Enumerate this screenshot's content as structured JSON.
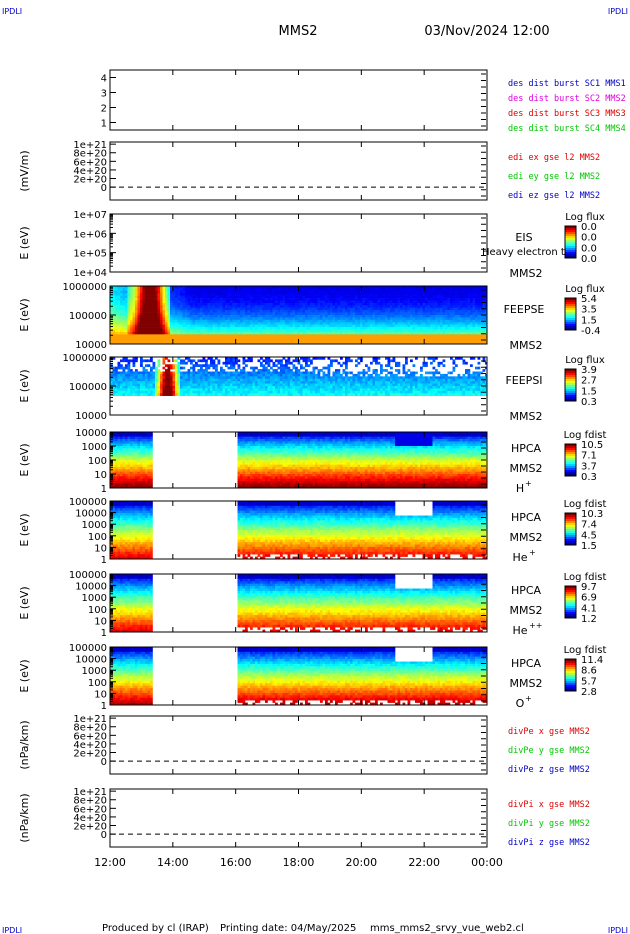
{
  "header": {
    "corner_tl": "IPDLI",
    "corner_tr": "IPDLI",
    "corner_bl": "IPDLI",
    "corner_br": "IPDLI",
    "mission": "MMS2",
    "datetime": "03/Nov/2024 12:00"
  },
  "footer": {
    "produced_by": "Produced by cl (IRAP)",
    "printing_date": "Printing date: 04/May/2025",
    "filename": "mms_mms2_srvy_vue_web2.cl"
  },
  "colors": {
    "black": "#000000",
    "blue": "#0000c8",
    "magenta": "#e000e0",
    "red": "#dd0000",
    "green": "#00c800"
  },
  "chart_data": [
    {
      "type": "line",
      "id": "p1",
      "yticks": [
        "4",
        "3",
        "2",
        "1"
      ],
      "ylim": [
        0.5,
        4.5
      ],
      "legend": [
        {
          "text": "des dist burst SC1 MMS1",
          "color": "#0000c8"
        },
        {
          "text": "des dist burst SC2 MMS2",
          "color": "#e000e0"
        },
        {
          "text": "des dist burst SC3 MMS3",
          "color": "#dd0000"
        },
        {
          "text": "des dist burst SC4 MMS4",
          "color": "#00c800"
        }
      ]
    },
    {
      "type": "line",
      "id": "p2",
      "ylabel": "(mV/m)",
      "yticks": [
        "1e+21",
        "8e+20",
        "6e+20",
        "4e+20",
        "2e+20",
        "0"
      ],
      "ylim": [
        -3e+20,
        1.05e+21
      ],
      "dashed_zero": true,
      "legend": [
        {
          "text": "edi ex gse l2 MMS2",
          "color": "#dd0000"
        },
        {
          "text": "edi ey gse l2 MMS2",
          "color": "#00c800"
        },
        {
          "text": "edi ez gse l2 MMS2",
          "color": "#0000c8"
        }
      ]
    },
    {
      "type": "heatmap",
      "id": "p3",
      "ylabel": "E (eV)",
      "yticks": [
        "1e+07",
        "1e+06",
        "1e+05",
        "1e+04"
      ],
      "instrument": [
        "EIS"
      ],
      "overlay_text": "Heavy electron to",
      "spacecraft": "MMS2",
      "colorbar": {
        "title": "Log flux",
        "ticks": [
          "0.0",
          "0.0",
          "0.0",
          "0.0"
        ]
      }
    },
    {
      "type": "heatmap",
      "id": "p4",
      "ylabel": "E (eV)",
      "yticks": [
        "1000000",
        "100000",
        "10000"
      ],
      "instrument": [
        "FEEPSE"
      ],
      "spacecraft": "MMS2",
      "colorbar": {
        "title": "Log flux",
        "ticks": [
          "5.4",
          "3.5",
          "1.5",
          "-0.4"
        ]
      }
    },
    {
      "type": "heatmap",
      "id": "p5",
      "ylabel": "E (eV)",
      "yticks": [
        "1000000",
        "100000",
        "10000"
      ],
      "instrument": [
        "FEEPSI"
      ],
      "spacecraft": "MMS2",
      "colorbar": {
        "title": "Log flux",
        "ticks": [
          "3.9",
          "2.7",
          "1.5",
          "0.3"
        ]
      }
    },
    {
      "type": "heatmap",
      "id": "p6",
      "ylabel": "E (eV)",
      "yticks": [
        "10000",
        "1000",
        "100",
        "10",
        "1"
      ],
      "instrument": [
        "HPCA",
        "MMS2"
      ],
      "species": "H",
      "charge": "+",
      "colorbar": {
        "title": "Log fdist",
        "ticks": [
          "10.5",
          "7.1",
          "3.7",
          "0.3"
        ]
      }
    },
    {
      "type": "heatmap",
      "id": "p7",
      "ylabel": "E (eV)",
      "yticks": [
        "100000",
        "10000",
        "1000",
        "100",
        "10",
        "1"
      ],
      "instrument": [
        "HPCA",
        "MMS2"
      ],
      "species": "He",
      "charge": "+",
      "colorbar": {
        "title": "Log fdist",
        "ticks": [
          "10.3",
          "7.4",
          "4.5",
          "1.5"
        ]
      }
    },
    {
      "type": "heatmap",
      "id": "p8",
      "ylabel": "E (eV)",
      "yticks": [
        "100000",
        "10000",
        "1000",
        "100",
        "10",
        "1"
      ],
      "instrument": [
        "HPCA",
        "MMS2"
      ],
      "species": "He",
      "charge": "++",
      "colorbar": {
        "title": "Log fdist",
        "ticks": [
          "9.7",
          "6.9",
          "4.1",
          "1.2"
        ]
      }
    },
    {
      "type": "heatmap",
      "id": "p9",
      "ylabel": "E (eV)",
      "yticks": [
        "100000",
        "10000",
        "1000",
        "100",
        "10",
        "1"
      ],
      "instrument": [
        "HPCA",
        "MMS2"
      ],
      "species": "O",
      "charge": "+",
      "colorbar": {
        "title": "Log fdist",
        "ticks": [
          "11.4",
          "8.6",
          "5.7",
          "2.8"
        ]
      }
    },
    {
      "type": "line",
      "id": "p10",
      "ylabel": "(nPa/km)",
      "yticks": [
        "1e+21",
        "8e+20",
        "6e+20",
        "4e+20",
        "2e+20",
        "0"
      ],
      "ylim": [
        -3e+20,
        1.05e+21
      ],
      "dashed_zero": true,
      "legend": [
        {
          "text": "divPe x gse MMS2",
          "color": "#dd0000"
        },
        {
          "text": "divPe y gse MMS2",
          "color": "#00c800"
        },
        {
          "text": "divPe z gse MMS2",
          "color": "#0000c8"
        }
      ]
    },
    {
      "type": "line",
      "id": "p11",
      "ylabel": "(nPa/km)",
      "yticks": [
        "1e+21",
        "8e+20",
        "6e+20",
        "4e+20",
        "2e+20",
        "0"
      ],
      "ylim": [
        -3e+20,
        1.05e+21
      ],
      "dashed_zero": true,
      "legend": [
        {
          "text": "divPi x gse MMS2",
          "color": "#dd0000"
        },
        {
          "text": "divPi y gse MMS2",
          "color": "#00c800"
        },
        {
          "text": "divPi z gse MMS2",
          "color": "#0000c8"
        }
      ]
    }
  ],
  "xaxis": {
    "ticks": [
      "12:00",
      "14:00",
      "16:00",
      "18:00",
      "20:00",
      "22:00",
      "00:00"
    ],
    "data_gap": [
      "13:20",
      "16:00"
    ]
  }
}
